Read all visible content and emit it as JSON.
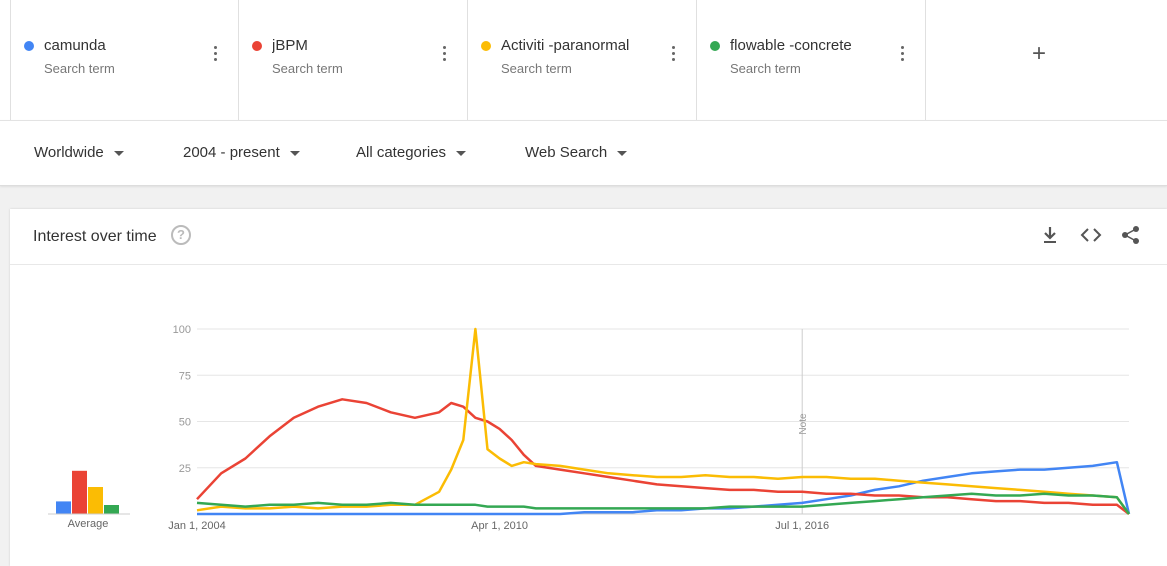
{
  "terms": [
    {
      "name": "camunda",
      "sub": "Search term",
      "color": "#4285f4"
    },
    {
      "name": "jBPM",
      "sub": "Search term",
      "color": "#ea4335"
    },
    {
      "name": "Activiti -paranormal",
      "sub": "Search term",
      "color": "#fbbc04"
    },
    {
      "name": "flowable -concrete",
      "sub": "Search term",
      "color": "#34a853"
    }
  ],
  "add_term": "+",
  "filters": {
    "region": "Worldwide",
    "time": "2004 - present",
    "category": "All categories",
    "search_type": "Web Search"
  },
  "card": {
    "title": "Interest over time",
    "help": "?"
  },
  "icons": [
    "download-icon",
    "embed-icon",
    "share-icon"
  ],
  "chart_data": {
    "type": "line",
    "ylim": [
      0,
      100
    ],
    "y_ticks": [
      25,
      50,
      75,
      100
    ],
    "x_tick_labels": [
      "Jan 1, 2004",
      "Apr 1, 2010",
      "Jul 1, 2016"
    ],
    "note_label": "Note",
    "average_label": "Average",
    "average": {
      "camunda": 7,
      "jBPM": 24,
      "Activiti -paranormal": 15,
      "flowable -concrete": 5
    },
    "x": [
      2004.0,
      2004.5,
      2005.0,
      2005.5,
      2006.0,
      2006.5,
      2007.0,
      2007.5,
      2008.0,
      2008.5,
      2009.0,
      2009.25,
      2009.5,
      2009.75,
      2010.0,
      2010.25,
      2010.5,
      2010.75,
      2011.0,
      2011.5,
      2012.0,
      2012.5,
      2013.0,
      2013.5,
      2014.0,
      2014.5,
      2015.0,
      2015.5,
      2016.0,
      2016.5,
      2017.0,
      2017.5,
      2018.0,
      2018.5,
      2019.0,
      2019.5,
      2020.0,
      2020.5,
      2021.0,
      2021.5,
      2022.0,
      2022.5,
      2023.0,
      2023.25
    ],
    "series": [
      {
        "name": "camunda",
        "color": "#4285f4",
        "values": [
          0,
          0,
          0,
          0,
          0,
          0,
          0,
          0,
          0,
          0,
          0,
          0,
          0,
          0,
          0,
          0,
          0,
          0,
          0,
          0,
          1,
          1,
          1,
          2,
          2,
          3,
          3,
          4,
          5,
          6,
          8,
          10,
          13,
          15,
          18,
          20,
          22,
          23,
          24,
          24,
          25,
          26,
          28,
          0
        ]
      },
      {
        "name": "jBPM",
        "color": "#ea4335",
        "values": [
          8,
          22,
          30,
          42,
          52,
          58,
          62,
          60,
          55,
          52,
          55,
          60,
          58,
          52,
          50,
          46,
          40,
          32,
          26,
          24,
          22,
          20,
          18,
          16,
          15,
          14,
          13,
          13,
          12,
          12,
          11,
          11,
          10,
          10,
          9,
          9,
          8,
          7,
          7,
          6,
          6,
          5,
          5,
          0
        ]
      },
      {
        "name": "Activiti -paranormal",
        "color": "#fbbc04",
        "values": [
          2,
          4,
          3,
          3,
          4,
          3,
          4,
          4,
          5,
          5,
          12,
          24,
          40,
          100,
          35,
          30,
          26,
          28,
          27,
          26,
          24,
          22,
          21,
          20,
          20,
          21,
          20,
          20,
          19,
          20,
          20,
          19,
          19,
          18,
          17,
          16,
          15,
          14,
          13,
          12,
          11,
          10,
          9,
          0
        ]
      },
      {
        "name": "flowable -concrete",
        "color": "#34a853",
        "values": [
          6,
          5,
          4,
          5,
          5,
          6,
          5,
          5,
          6,
          5,
          5,
          5,
          5,
          5,
          4,
          4,
          4,
          4,
          3,
          3,
          3,
          3,
          3,
          3,
          3,
          3,
          4,
          4,
          4,
          4,
          5,
          6,
          7,
          8,
          9,
          10,
          11,
          10,
          10,
          11,
          10,
          10,
          9,
          0
        ]
      }
    ]
  }
}
